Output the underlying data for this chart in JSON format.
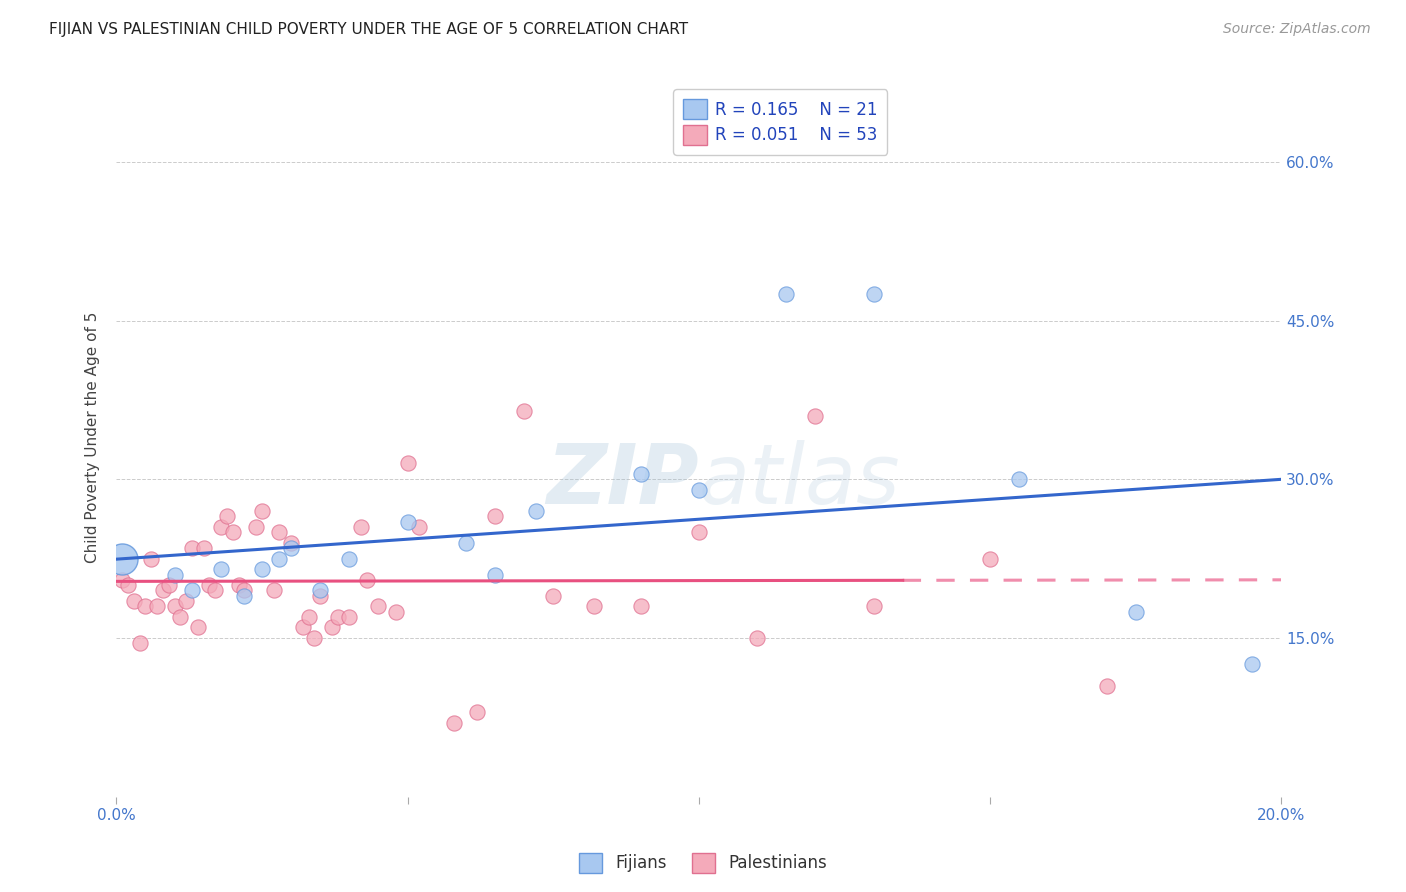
{
  "title": "FIJIAN VS PALESTINIAN CHILD POVERTY UNDER THE AGE OF 5 CORRELATION CHART",
  "source": "Source: ZipAtlas.com",
  "ylabel": "Child Poverty Under the Age of 5",
  "xlim": [
    0.0,
    0.2
  ],
  "ylim": [
    0.0,
    0.68
  ],
  "xticks": [
    0.0,
    0.05,
    0.1,
    0.15,
    0.2
  ],
  "xticklabels": [
    "0.0%",
    "",
    "",
    "",
    "20.0%"
  ],
  "yticks": [
    0.15,
    0.3,
    0.45,
    0.6
  ],
  "yticklabels": [
    "15.0%",
    "30.0%",
    "45.0%",
    "60.0%"
  ],
  "fijian_color": "#A8C8F0",
  "palestinian_color": "#F4AABA",
  "fijian_edge": "#6699DD",
  "palestinian_edge": "#E07090",
  "trend_blue": "#3366CC",
  "trend_pink": "#E85080",
  "legend_r1": "0.165",
  "legend_n1": "21",
  "legend_r2": "0.051",
  "legend_n2": "53",
  "legend_label1": "Fijians",
  "legend_label2": "Palestinians",
  "background_color": "#ffffff",
  "grid_color": "#cccccc",
  "watermark_color": "#C8DCEE",
  "fijian_x": [
    0.001,
    0.01,
    0.013,
    0.018,
    0.022,
    0.025,
    0.028,
    0.03,
    0.035,
    0.04,
    0.05,
    0.06,
    0.065,
    0.072,
    0.09,
    0.1,
    0.115,
    0.13,
    0.155,
    0.175,
    0.195
  ],
  "fijian_y": [
    0.225,
    0.21,
    0.195,
    0.215,
    0.19,
    0.215,
    0.225,
    0.235,
    0.195,
    0.225,
    0.26,
    0.24,
    0.21,
    0.27,
    0.305,
    0.29,
    0.475,
    0.475,
    0.3,
    0.175,
    0.125
  ],
  "fijian_big": [
    1,
    0,
    0,
    0,
    0,
    0,
    0,
    0,
    0,
    0,
    0,
    0,
    0,
    0,
    0,
    0,
    0,
    0,
    0,
    0,
    0
  ],
  "palestinian_x": [
    0.001,
    0.002,
    0.003,
    0.004,
    0.005,
    0.006,
    0.007,
    0.008,
    0.009,
    0.01,
    0.011,
    0.012,
    0.013,
    0.014,
    0.015,
    0.016,
    0.017,
    0.018,
    0.019,
    0.02,
    0.021,
    0.022,
    0.024,
    0.025,
    0.027,
    0.028,
    0.03,
    0.032,
    0.033,
    0.034,
    0.035,
    0.037,
    0.038,
    0.04,
    0.042,
    0.043,
    0.045,
    0.048,
    0.05,
    0.052,
    0.058,
    0.062,
    0.065,
    0.07,
    0.075,
    0.082,
    0.09,
    0.1,
    0.11,
    0.12,
    0.13,
    0.15,
    0.17
  ],
  "palestinian_y": [
    0.205,
    0.2,
    0.185,
    0.145,
    0.18,
    0.225,
    0.18,
    0.195,
    0.2,
    0.18,
    0.17,
    0.185,
    0.235,
    0.16,
    0.235,
    0.2,
    0.195,
    0.255,
    0.265,
    0.25,
    0.2,
    0.195,
    0.255,
    0.27,
    0.195,
    0.25,
    0.24,
    0.16,
    0.17,
    0.15,
    0.19,
    0.16,
    0.17,
    0.17,
    0.255,
    0.205,
    0.18,
    0.175,
    0.315,
    0.255,
    0.07,
    0.08,
    0.265,
    0.365,
    0.19,
    0.18,
    0.18,
    0.25,
    0.15,
    0.36,
    0.18,
    0.225,
    0.105
  ],
  "title_fontsize": 11,
  "source_fontsize": 10,
  "tick_fontsize": 11,
  "ylabel_fontsize": 11,
  "legend_fontsize": 12
}
